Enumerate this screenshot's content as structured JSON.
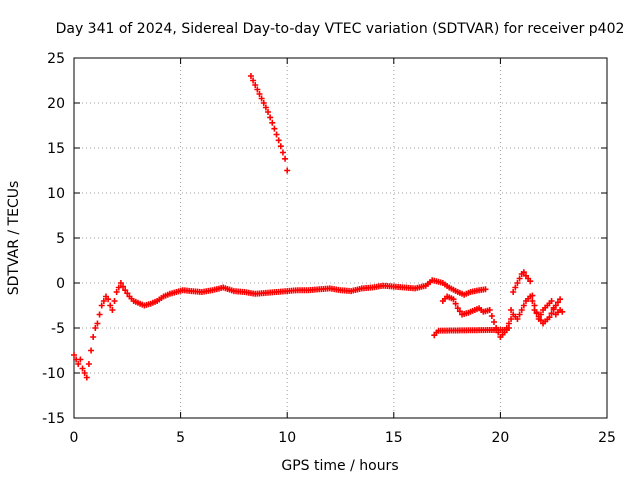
{
  "chart_data": {
    "type": "scatter",
    "title": "Day 341 of 2024, Sidereal Day-to-day VTEC variation (SDTVAR) for receiver p402",
    "xlabel": "GPS time / hours",
    "ylabel": "SDTVAR / TECUs",
    "xlim": [
      0,
      25
    ],
    "ylim": [
      -15,
      25
    ],
    "xticks": [
      0,
      5,
      10,
      15,
      20,
      25
    ],
    "xtick_labels": [
      "0",
      "5",
      "10",
      "15",
      "20",
      "25"
    ],
    "yticks": [
      -15,
      -10,
      -5,
      0,
      5,
      10,
      15,
      20,
      25
    ],
    "ytick_labels": [
      "-15",
      "-10",
      "-5",
      "0",
      "5",
      "10",
      "15",
      "20",
      "25"
    ],
    "grid": true,
    "marker": "plus",
    "color": "#ff0000",
    "series": [
      {
        "name": "sdtvar-main",
        "x": [
          0.0,
          0.1,
          0.2,
          0.3,
          0.4,
          0.5,
          0.6,
          0.7,
          0.8,
          0.9,
          1.0,
          1.1,
          1.2,
          1.3,
          1.4,
          1.5,
          1.6,
          1.7,
          1.8,
          1.9,
          2.0,
          2.2,
          2.4,
          2.6,
          2.8,
          3.0,
          3.3,
          3.6,
          3.9,
          4.2,
          4.5,
          4.8,
          5.1,
          5.5,
          6.0,
          6.5,
          7.0,
          7.5,
          8.0,
          8.5,
          9.0,
          9.5,
          10.0,
          10.5,
          11.0,
          11.5,
          12.0,
          12.5,
          13.0,
          13.5,
          14.0,
          14.5,
          15.0,
          15.5,
          16.0,
          16.5,
          16.8,
          17.0,
          17.3,
          17.6,
          18.0,
          18.3,
          18.6,
          19.0,
          19.3
        ],
        "y": [
          -8.0,
          -8.5,
          -9.0,
          -8.5,
          -9.5,
          -10.0,
          -10.5,
          -9.0,
          -7.5,
          -6.0,
          -5.0,
          -4.5,
          -3.5,
          -2.5,
          -2.0,
          -1.5,
          -1.8,
          -2.5,
          -3.0,
          -2.0,
          -1.0,
          0.0,
          -0.8,
          -1.5,
          -2.0,
          -2.2,
          -2.5,
          -2.3,
          -2.0,
          -1.5,
          -1.2,
          -1.0,
          -0.8,
          -0.9,
          -1.0,
          -0.8,
          -0.5,
          -0.9,
          -1.0,
          -1.2,
          -1.1,
          -1.0,
          -0.9,
          -0.8,
          -0.8,
          -0.7,
          -0.6,
          -0.8,
          -0.9,
          -0.6,
          -0.5,
          -0.3,
          -0.4,
          -0.5,
          -0.6,
          -0.3,
          0.3,
          0.2,
          0.0,
          -0.5,
          -1.0,
          -1.3,
          -1.0,
          -0.8,
          -0.7
        ]
      },
      {
        "name": "sdtvar-steep-segment",
        "x": [
          8.3,
          8.5,
          8.7,
          8.9,
          9.1,
          9.3,
          9.5,
          9.7,
          9.9,
          10.0
        ],
        "y": [
          23.0,
          22.0,
          21.0,
          20.0,
          19.0,
          17.8,
          16.5,
          15.2,
          13.8,
          12.5
        ]
      },
      {
        "name": "sdtvar-lower-band",
        "x": [
          17.3,
          17.5,
          17.8,
          18.0,
          18.2,
          18.5,
          18.8,
          19.0,
          19.2,
          19.5,
          19.8,
          20.0,
          20.2,
          20.4,
          20.6,
          20.8,
          21.0,
          21.2,
          21.4,
          21.6,
          21.8,
          22.0,
          22.2,
          22.4,
          22.6,
          22.8
        ],
        "y": [
          -2.0,
          -1.5,
          -1.8,
          -2.8,
          -3.5,
          -3.3,
          -3.0,
          -2.8,
          -3.2,
          -3.0,
          -5.0,
          -6.0,
          -5.5,
          -4.5,
          -3.5,
          -4.0,
          -3.0,
          -2.0,
          -1.5,
          -2.5,
          -4.0,
          -3.0,
          -2.5,
          -2.0,
          -3.5,
          -3.0
        ]
      },
      {
        "name": "sdtvar-isolated",
        "x": [
          16.9,
          17.0,
          17.1,
          20.3,
          20.4,
          20.6,
          21.0,
          21.1,
          21.2,
          21.3,
          21.4,
          21.6,
          22.0,
          22.3,
          22.6,
          22.8,
          22.9
        ],
        "y": [
          -5.8,
          -5.5,
          -5.3,
          -5.2,
          -5.0,
          -1.0,
          1.0,
          1.2,
          0.8,
          0.5,
          0.2,
          -3.0,
          -4.5,
          -3.8,
          -2.5,
          -1.8,
          -3.2
        ]
      }
    ]
  }
}
